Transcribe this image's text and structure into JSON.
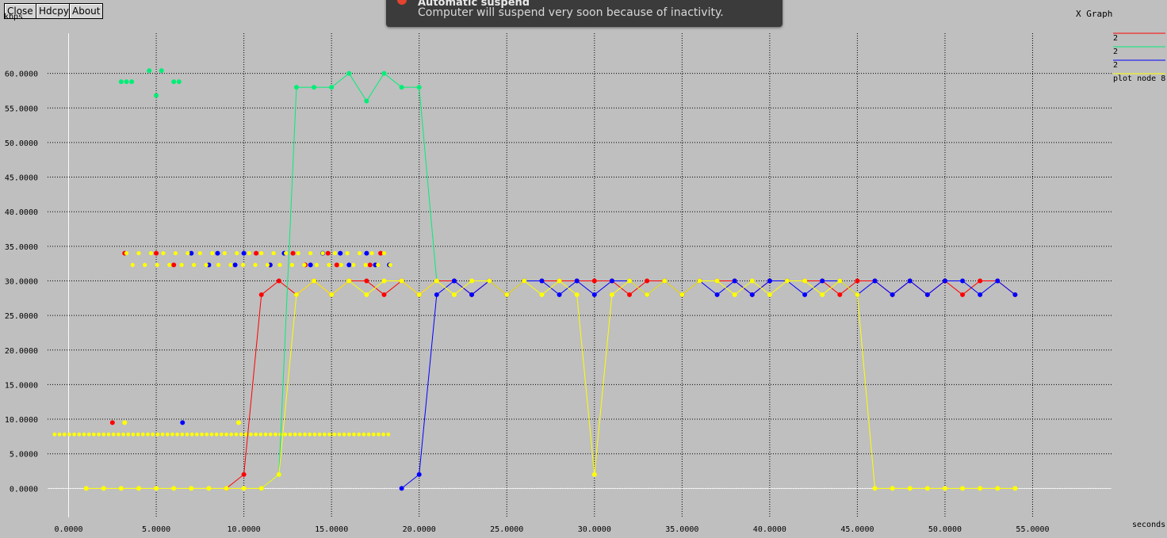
{
  "toolbar": {
    "close_label": "Close",
    "hdcpy_label": "Hdcpy",
    "about_label": "About"
  },
  "window_title": "X Graph",
  "notification": {
    "title": "Automatic suspend",
    "message": "Computer will suspend very soon because of inactivity.",
    "icon": "red-dot-icon"
  },
  "chart_data": {
    "type": "line",
    "xlabel": "seconds",
    "ylabel": "kbps",
    "xlim": [
      -1.2,
      59.5
    ],
    "ylim": [
      -4.2,
      65.8
    ],
    "x_ticks": [
      0,
      5,
      10,
      15,
      20,
      25,
      30,
      35,
      40,
      45,
      50,
      55
    ],
    "x_tick_labels": [
      "0.0000",
      "5.0000",
      "10.0000",
      "15.0000",
      "20.0000",
      "25.0000",
      "30.0000",
      "35.0000",
      "40.0000",
      "45.0000",
      "50.0000",
      "55.0000"
    ],
    "y_ticks": [
      0,
      5,
      10,
      15,
      20,
      25,
      30,
      35,
      40,
      45,
      50,
      55,
      60
    ],
    "y_tick_labels": [
      "0.0000",
      "5.0000",
      "10.0000",
      "15.0000",
      "20.0000",
      "25.0000",
      "30.0000",
      "35.0000",
      "40.0000",
      "45.0000",
      "50.0000",
      "55.0000",
      "60.0000"
    ],
    "grid": true,
    "legend_position": "top-right",
    "series": [
      {
        "name": "2",
        "color": "#ff0000",
        "x": [
          9,
          10,
          11,
          12,
          13,
          14,
          15,
          16,
          17,
          18,
          19,
          20,
          21,
          22,
          23,
          24,
          25,
          26,
          27,
          28,
          29,
          30,
          31,
          32,
          33,
          34,
          35,
          36,
          37,
          38,
          39,
          40,
          41,
          42,
          43,
          44,
          45,
          46,
          47,
          48,
          49,
          50,
          51,
          52,
          53,
          54
        ],
        "y": [
          0,
          2,
          28,
          30,
          28,
          30,
          28,
          30,
          30,
          28,
          30,
          28,
          30,
          30,
          28,
          30,
          28,
          30,
          30,
          30,
          30,
          30,
          30,
          28,
          30,
          30,
          28,
          30,
          30,
          30,
          28,
          30,
          30,
          30,
          30,
          28,
          30,
          30,
          28,
          30,
          28,
          30,
          28,
          30,
          30,
          28
        ]
      },
      {
        "name": "2",
        "color": "#00ee77",
        "x": [
          11,
          12,
          13,
          14,
          15,
          16,
          17,
          18,
          19,
          20,
          21
        ],
        "y": [
          0,
          2,
          58,
          58,
          58,
          60,
          56,
          60,
          58,
          58,
          30
        ]
      },
      {
        "name": "2",
        "color": "#0000ff",
        "x": [
          19,
          20,
          21,
          22,
          23,
          24,
          25,
          26,
          27,
          28,
          29,
          30,
          31,
          32,
          33,
          34,
          35,
          36,
          37,
          38,
          39,
          40,
          41,
          42,
          43,
          44,
          45,
          46,
          47,
          48,
          49,
          50,
          51,
          52,
          53,
          54
        ],
        "y": [
          0,
          2,
          28,
          30,
          28,
          30,
          28,
          30,
          30,
          28,
          30,
          28,
          30,
          30,
          28,
          30,
          28,
          30,
          28,
          30,
          28,
          30,
          30,
          28,
          30,
          30,
          28,
          30,
          28,
          30,
          28,
          30,
          30,
          28,
          30,
          28
        ]
      },
      {
        "name": "plot node 8",
        "color": "#ffff00",
        "x": [
          1,
          2,
          3,
          4,
          5,
          6,
          7,
          8,
          9,
          10,
          11,
          12,
          13,
          14,
          15,
          16,
          17,
          18,
          19,
          20,
          21,
          22,
          23,
          24,
          25,
          26,
          27,
          28,
          29,
          30,
          31,
          32,
          33,
          34,
          35,
          36,
          37,
          38,
          39,
          40,
          41,
          42,
          43,
          44,
          45,
          46,
          47,
          48,
          49,
          50,
          51,
          52,
          53,
          54
        ],
        "y": [
          0,
          0,
          0,
          0,
          0,
          0,
          0,
          0,
          0,
          0,
          0,
          2,
          28,
          30,
          28,
          30,
          28,
          30,
          30,
          28,
          30,
          28,
          30,
          30,
          28,
          30,
          28,
          30,
          28,
          2,
          28,
          30,
          28,
          30,
          28,
          30,
          30,
          28,
          30,
          28,
          30,
          30,
          28,
          30,
          28,
          0,
          0,
          0,
          0,
          0,
          0,
          0,
          0,
          0
        ]
      }
    ],
    "scatter_points": [
      {
        "color": "#00ee77",
        "x": [
          3.0,
          3.3,
          3.6,
          4.6,
          5.3,
          5.0,
          6.0,
          6.3
        ],
        "y": [
          58.8,
          58.8,
          58.8,
          60.4,
          60.4,
          56.8,
          58.8,
          58.8
        ]
      },
      {
        "color": "#ff0000",
        "x": [
          2.5,
          3.2,
          5.0,
          6.0,
          10.7,
          11.5,
          12.8,
          13.5,
          14.8,
          15.3,
          17.2,
          17.8
        ],
        "y": [
          9.5,
          34.0,
          34.0,
          32.3,
          34.0,
          32.3,
          34.0,
          32.3,
          34.0,
          32.3,
          32.3,
          34.0
        ]
      },
      {
        "color": "#0000ff",
        "x": [
          6.5,
          7.0,
          8.0,
          8.5,
          9.5,
          10.0,
          11.5,
          12.3,
          13.8,
          14.5,
          15.5,
          16.0,
          17.0,
          17.5,
          18.3
        ],
        "y": [
          9.5,
          34.0,
          32.3,
          34.0,
          32.3,
          34.0,
          32.3,
          34.0,
          32.3,
          34.0,
          34.0,
          32.3,
          34.0,
          32.3,
          32.3
        ]
      }
    ]
  }
}
